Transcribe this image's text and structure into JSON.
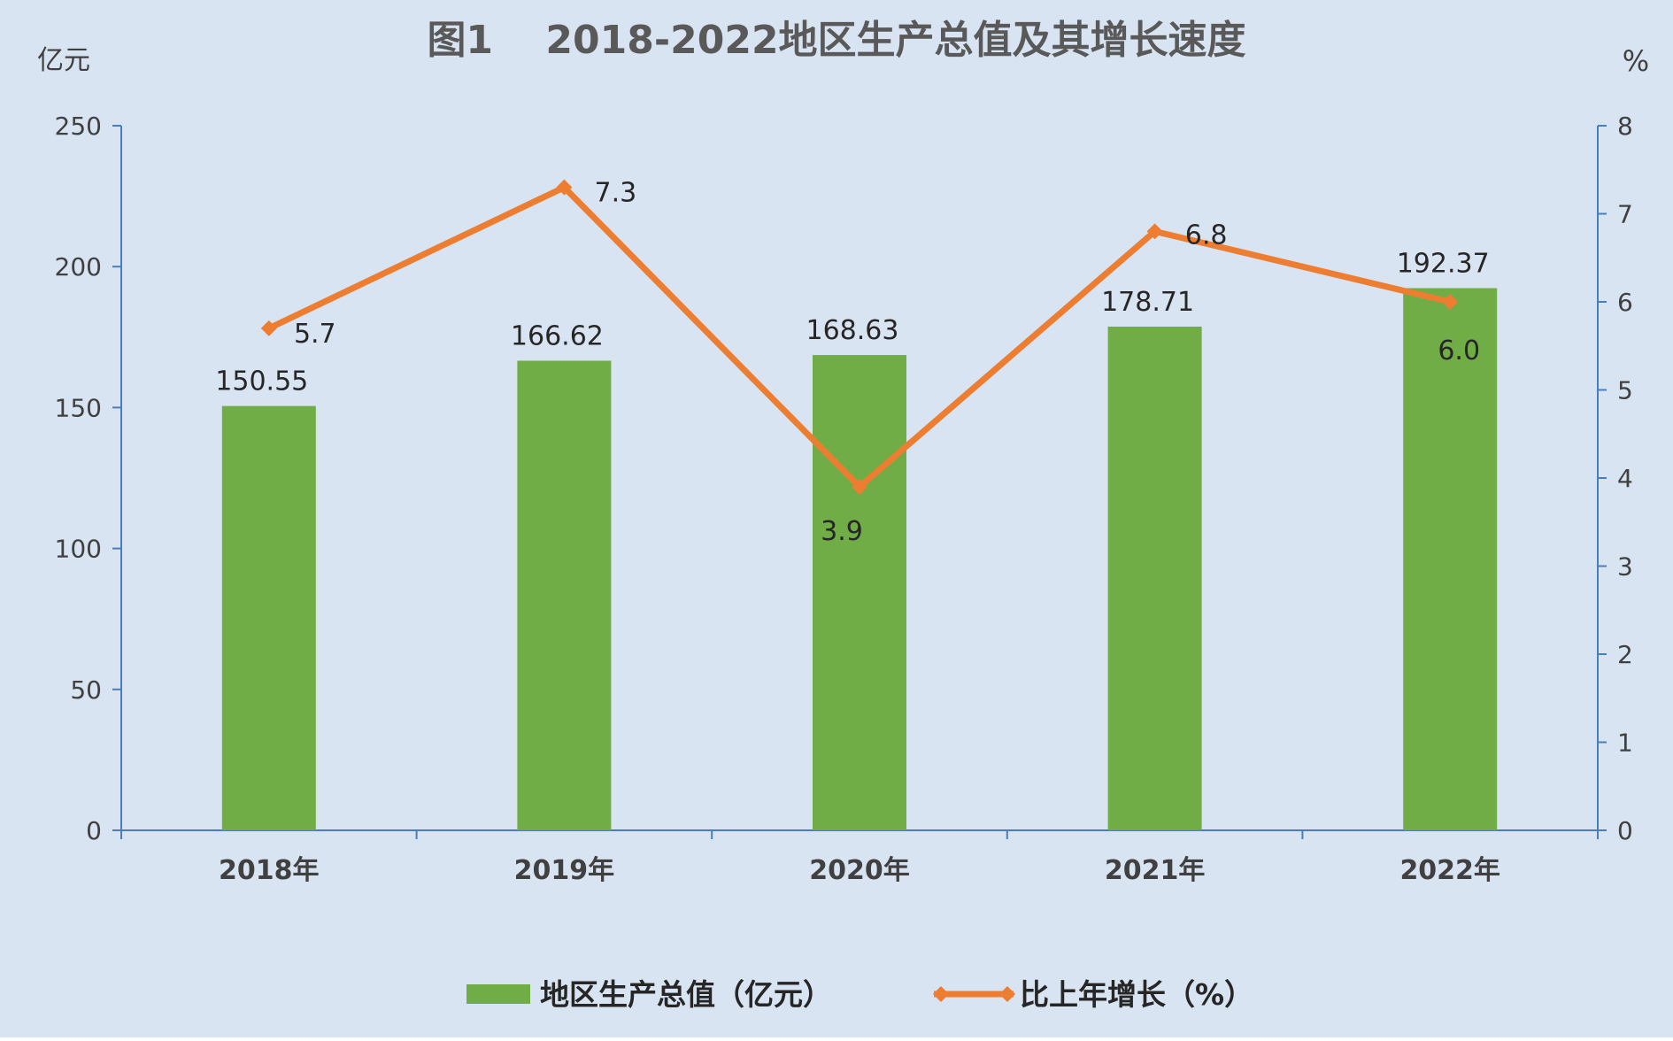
{
  "chart_data": {
    "type": "bar",
    "title": "图1　 2018-2022地区生产总值及其增长速度",
    "categories": [
      "2018年",
      "2019年",
      "2020年",
      "2021年",
      "2022年"
    ],
    "y_left": {
      "unit_label": "亿元",
      "range": [
        0,
        250
      ],
      "ticks": [
        "0",
        "50",
        "100",
        "150",
        "200",
        "250"
      ]
    },
    "y_right": {
      "unit_label": "%",
      "range": [
        0,
        8
      ],
      "ticks": [
        "0",
        "1",
        "2",
        "3",
        "4",
        "5",
        "6",
        "7",
        "8"
      ]
    },
    "series": [
      {
        "name": "地区生产总值（亿元）",
        "type": "bar",
        "axis": "left",
        "values": [
          150.55,
          166.62,
          168.63,
          178.71,
          192.37
        ],
        "labels": [
          "150.55",
          "166.62",
          "168.63",
          "178.71",
          "192.37"
        ],
        "color": "#70AD47"
      },
      {
        "name": "比上年增长（%）",
        "type": "line",
        "axis": "right",
        "values": [
          5.7,
          7.3,
          3.9,
          6.8,
          6.0
        ],
        "labels": [
          "5.7",
          "7.3",
          "3.9",
          "6.8",
          "6.0"
        ],
        "color": "#ED7D31"
      }
    ],
    "grid": false,
    "legend": "bottom",
    "background": "#D9E4F2"
  }
}
